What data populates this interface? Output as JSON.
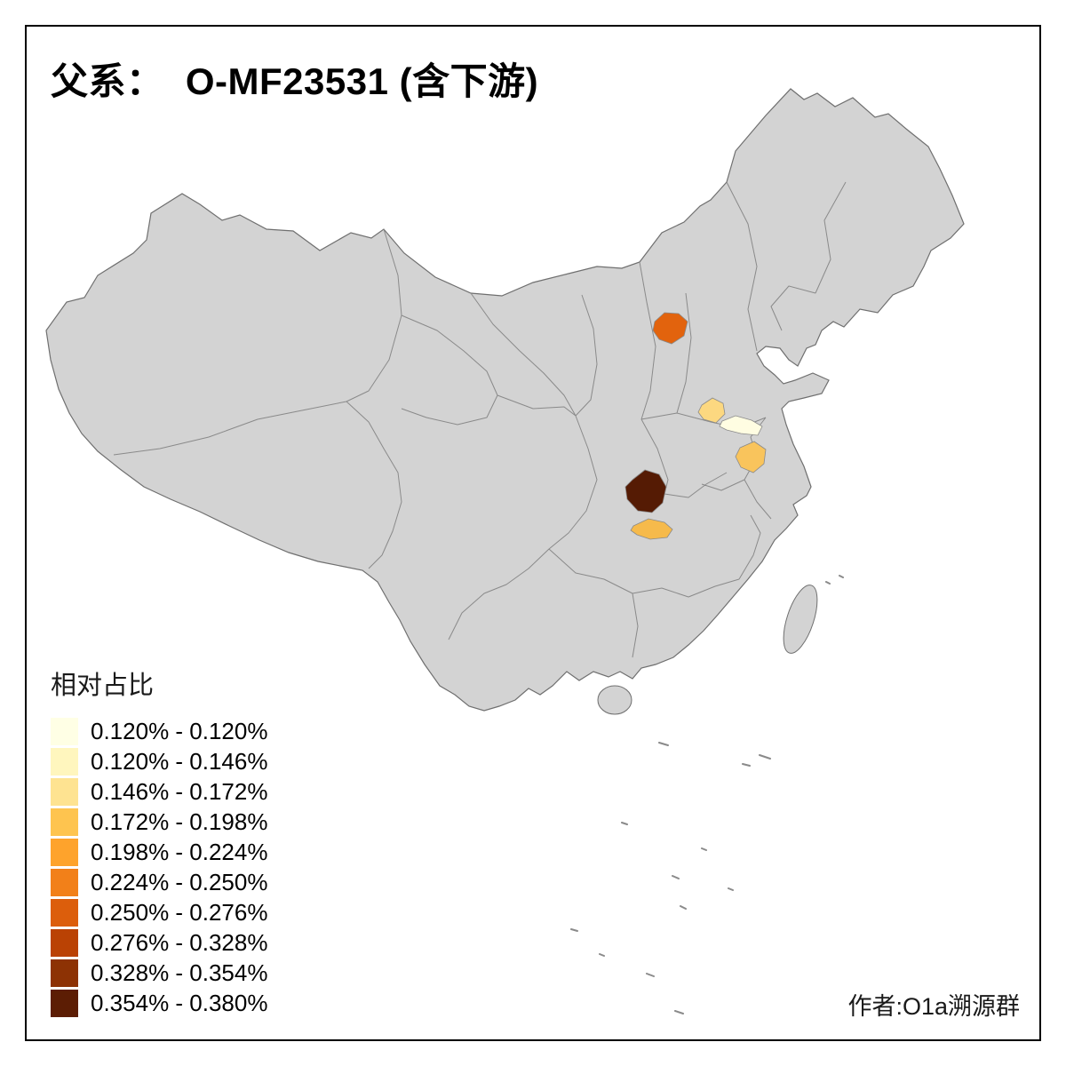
{
  "title": "父系：  O-MF23531 (含下游)",
  "credit": "作者:O1a溯源群",
  "legend": {
    "title": "相对占比",
    "items": [
      {
        "label": "0.120% - 0.120%",
        "color": "#FFFFE5"
      },
      {
        "label": "0.120% - 0.146%",
        "color": "#FFF6BE"
      },
      {
        "label": "0.146% - 0.172%",
        "color": "#FEE391"
      },
      {
        "label": "0.172% - 0.198%",
        "color": "#FEC44F"
      },
      {
        "label": "0.198% - 0.224%",
        "color": "#FEA32C"
      },
      {
        "label": "0.224% - 0.250%",
        "color": "#F28019"
      },
      {
        "label": "0.250% - 0.276%",
        "color": "#DC5E0C"
      },
      {
        "label": "0.276% - 0.328%",
        "color": "#BA4204"
      },
      {
        "label": "0.328% - 0.354%",
        "color": "#8D3204"
      },
      {
        "label": "0.354% - 0.380%",
        "color": "#5C1D04"
      }
    ]
  },
  "map": {
    "base_color": "#D3D3D3",
    "border_color": "#8A8A8A",
    "highlights": [
      {
        "color": "#E2630D"
      },
      {
        "color": "#FCD880"
      },
      {
        "color": "#FFFDE2"
      },
      {
        "color": "#F9C45C"
      },
      {
        "color": "#551B04"
      },
      {
        "color": "#F6BA4B"
      }
    ]
  }
}
